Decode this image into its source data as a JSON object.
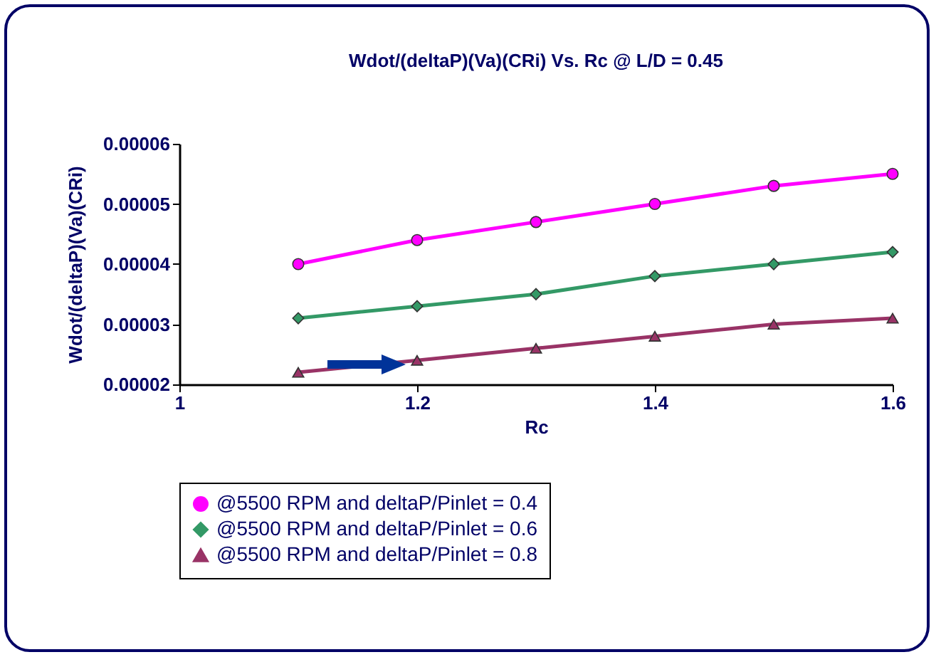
{
  "chart_data": {
    "type": "line",
    "title": "Wdot/(deltaP)(Va)(CRi) Vs. Rc @ L/D = 0.45",
    "xlabel": "Rc",
    "ylabel": "Wdot/(deltaP)(Va)(CRi)",
    "x": [
      1.1,
      1.2,
      1.3,
      1.4,
      1.5,
      1.6
    ],
    "series": [
      {
        "name": "@5500 RPM and deltaP/Pinlet = 0.4",
        "color": "#ff00ff",
        "marker": "circle",
        "values": [
          4e-05,
          4.4e-05,
          4.7e-05,
          5e-05,
          5.3e-05,
          5.5e-05
        ]
      },
      {
        "name": "@5500 RPM and deltaP/Pinlet = 0.6",
        "color": "#339966",
        "marker": "diamond",
        "values": [
          3.1e-05,
          3.3e-05,
          3.5e-05,
          3.8e-05,
          4e-05,
          4.2e-05
        ]
      },
      {
        "name": "@5500 RPM and deltaP/Pinlet = 0.8",
        "color": "#993366",
        "marker": "triangle",
        "values": [
          2.2e-05,
          2.4e-05,
          2.6e-05,
          2.8e-05,
          3e-05,
          3.1e-05
        ]
      }
    ],
    "xlim": [
      1,
      1.6
    ],
    "xticks": [
      1,
      1.2,
      1.4,
      1.6
    ],
    "ylim": [
      2e-05,
      6e-05
    ],
    "yticks": [
      {
        "value": 2e-05,
        "label": "0.00002"
      },
      {
        "value": 3e-05,
        "label": "0.00003"
      },
      {
        "value": 4e-05,
        "label": "0.00004"
      },
      {
        "value": 5e-05,
        "label": "0.00005"
      },
      {
        "value": 6e-05,
        "label": "0.00006"
      }
    ],
    "grid": false,
    "legend": "bottom"
  }
}
